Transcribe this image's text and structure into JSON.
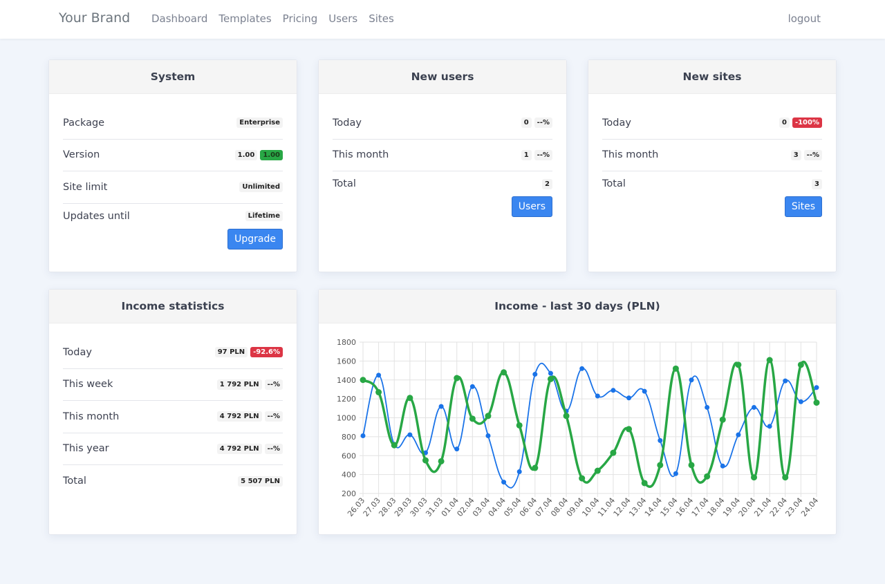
{
  "nav": {
    "brand": "Your Brand",
    "links": [
      "Dashboard",
      "Templates",
      "Pricing",
      "Users",
      "Sites"
    ],
    "logout": "logout"
  },
  "system": {
    "title": "System",
    "rows": [
      {
        "label": "Package",
        "values": [
          "Enterprise"
        ]
      },
      {
        "label": "Version",
        "values": [
          "1.00"
        ],
        "extra": "1.00"
      },
      {
        "label": "Site limit",
        "values": [
          "Unlimited"
        ]
      },
      {
        "label": "Updates until",
        "values": [
          "Lifetime"
        ]
      }
    ],
    "button": "Upgrade"
  },
  "new_users": {
    "title": "New users",
    "rows": [
      {
        "label": "Today",
        "value": "0",
        "change": "--%"
      },
      {
        "label": "This month",
        "value": "1",
        "change": "--%"
      },
      {
        "label": "Total",
        "value": "2"
      }
    ],
    "button": "Users"
  },
  "new_sites": {
    "title": "New sites",
    "rows": [
      {
        "label": "Today",
        "value": "0",
        "change": "-100%"
      },
      {
        "label": "This month",
        "value": "3",
        "change": "--%"
      },
      {
        "label": "Total",
        "value": "3"
      }
    ],
    "button": "Sites"
  },
  "income": {
    "title": "Income statistics",
    "rows": [
      {
        "label": "Today",
        "value": "97 PLN",
        "change": "-92.6%"
      },
      {
        "label": "This week",
        "value": "1 792 PLN",
        "change": "--%"
      },
      {
        "label": "This month",
        "value": "4 792 PLN",
        "change": "--%"
      },
      {
        "label": "This year",
        "value": "4 792 PLN",
        "change": "--%"
      },
      {
        "label": "Total",
        "value": "5 507 PLN"
      }
    ]
  },
  "chart_title": "Income - last 30 days (PLN)",
  "colors": {
    "blue_series": "#1a73e8",
    "green_series": "#28a745",
    "accent_button": "#3a86f0",
    "badge_red": "#dc3545",
    "badge_green": "#28a745"
  },
  "chart_data": {
    "type": "line",
    "title": "Income - last 30 days (PLN)",
    "categories": [
      "26.03",
      "27.03",
      "28.03",
      "29.03",
      "30.03",
      "31.03",
      "01.04",
      "02.04",
      "03.04",
      "04.04",
      "05.04",
      "06.04",
      "07.04",
      "08.04",
      "09.04",
      "10.04",
      "11.04",
      "12.04",
      "13.04",
      "14.04",
      "15.04",
      "16.04",
      "17.04",
      "18.04",
      "19.04",
      "20.04",
      "21.04",
      "22.04",
      "23.04",
      "24.04"
    ],
    "ylim": [
      200,
      1800
    ],
    "yticks": [
      200,
      400,
      600,
      800,
      1000,
      1200,
      1400,
      1600,
      1800
    ],
    "grid": true,
    "series": [
      {
        "color": "#1a73e8",
        "values": [
          810,
          1450,
          720,
          820,
          630,
          1120,
          670,
          1330,
          810,
          320,
          430,
          1460,
          1470,
          1070,
          1520,
          1230,
          1290,
          1210,
          1280,
          760,
          410,
          1400,
          1110,
          490,
          820,
          1110,
          910,
          1390,
          1170,
          1320
        ]
      },
      {
        "color": "#28a745",
        "values": [
          1400,
          1270,
          710,
          1210,
          550,
          540,
          1420,
          990,
          1020,
          1480,
          920,
          470,
          1410,
          1020,
          360,
          440,
          630,
          880,
          310,
          500,
          1520,
          500,
          380,
          980,
          1560,
          370,
          1610,
          370,
          1560,
          1160
        ]
      }
    ]
  }
}
